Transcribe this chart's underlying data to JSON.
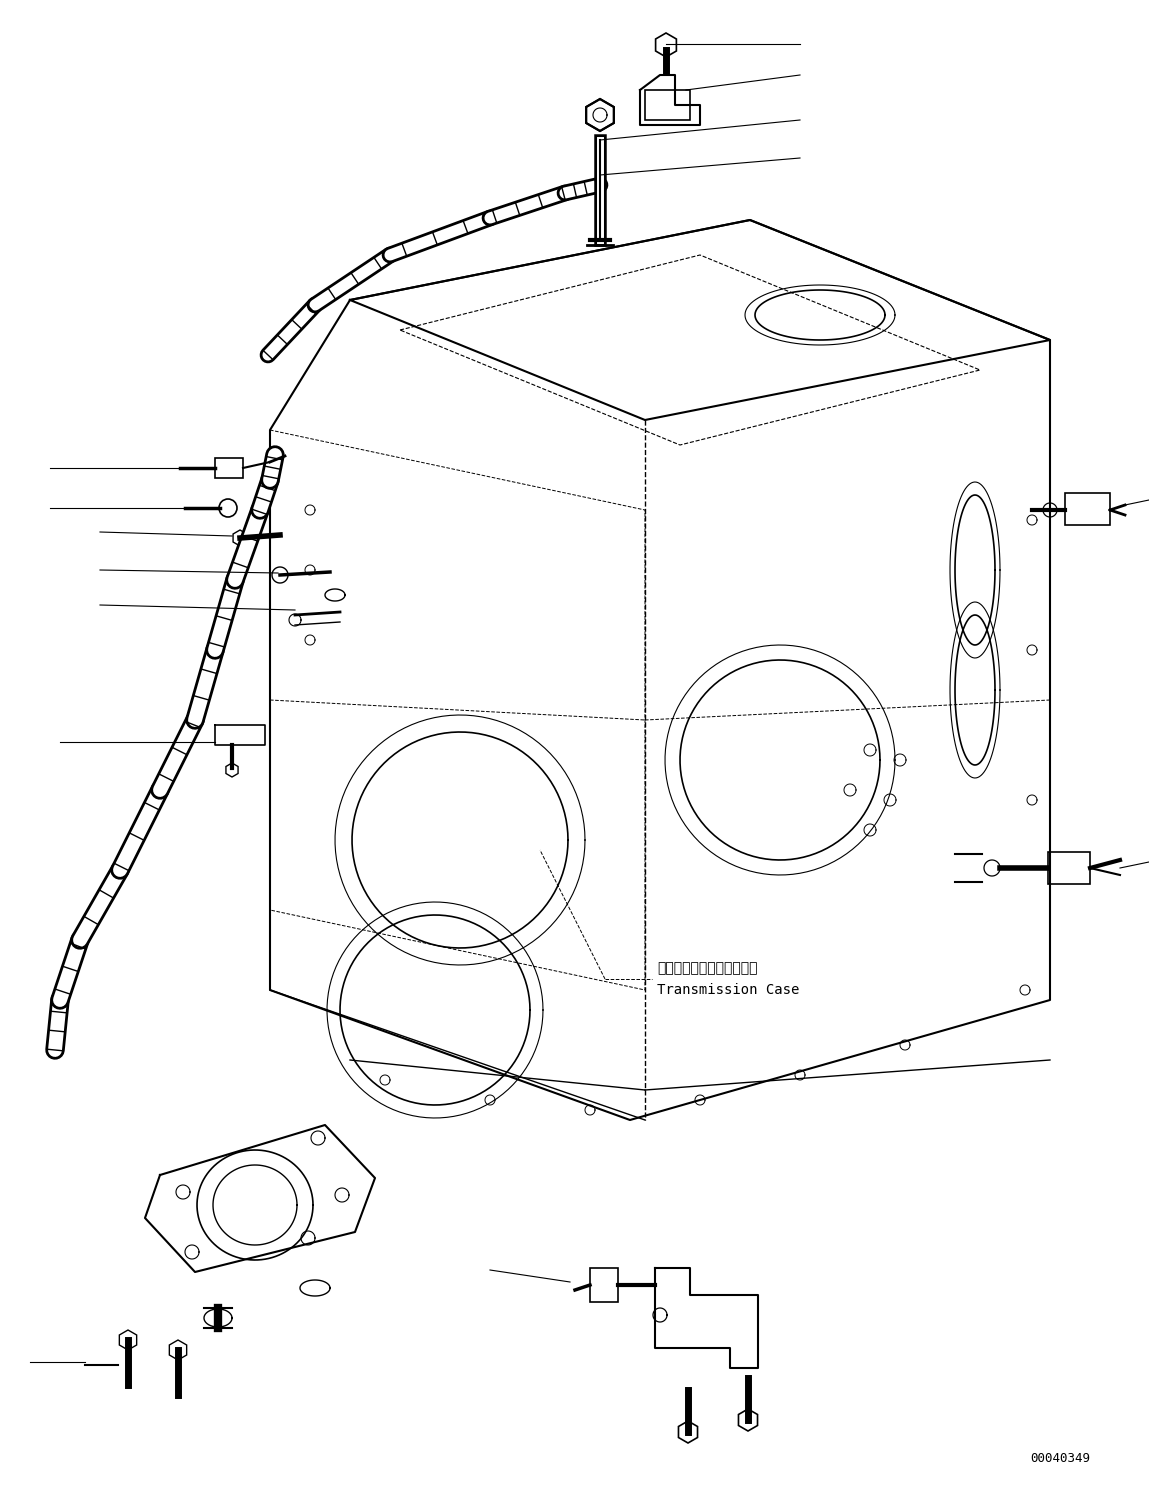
{
  "bg_color": "#ffffff",
  "line_color": "#000000",
  "figure_width": 11.49,
  "figure_height": 14.86,
  "dpi": 100,
  "drawing_code_ref": "00040349",
  "label_transmission_jp": "トランスミッションケース",
  "label_transmission_en": "Transmission Case",
  "label_font_size": 10,
  "ref_font_size": 9
}
